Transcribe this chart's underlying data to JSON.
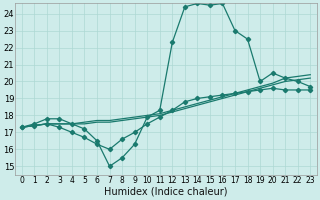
{
  "xlabel": "Humidex (Indice chaleur)",
  "bg_color": "#ceecea",
  "grid_color": "#aed8d4",
  "line_color": "#1a7a6e",
  "xlim": [
    -0.5,
    23.5
  ],
  "ylim": [
    14.5,
    24.6
  ],
  "xticks": [
    0,
    1,
    2,
    3,
    4,
    5,
    6,
    7,
    8,
    9,
    10,
    11,
    12,
    13,
    14,
    15,
    16,
    17,
    18,
    19,
    20,
    21,
    22,
    23
  ],
  "yticks": [
    15,
    16,
    17,
    18,
    19,
    20,
    21,
    22,
    23,
    24
  ],
  "lines": [
    {
      "x": [
        0,
        1,
        2,
        3,
        4,
        5,
        6,
        7,
        8,
        9,
        10,
        11,
        12,
        13,
        14,
        15,
        16,
        17,
        18,
        19,
        20,
        21,
        22,
        23
      ],
      "y": [
        17.3,
        17.5,
        17.8,
        17.8,
        17.5,
        17.2,
        16.5,
        15.0,
        15.5,
        16.3,
        17.9,
        18.3,
        22.3,
        24.4,
        24.6,
        24.5,
        24.6,
        23.0,
        22.5,
        20.0,
        20.5,
        20.2,
        20.0,
        19.7
      ],
      "marker": true
    },
    {
      "x": [
        0,
        1,
        2,
        3,
        4,
        5,
        6,
        7,
        8,
        9,
        10,
        11,
        12,
        13,
        14,
        15,
        16,
        17,
        18,
        19,
        20,
        21,
        22,
        23
      ],
      "y": [
        17.3,
        17.4,
        17.5,
        17.5,
        17.5,
        17.5,
        17.6,
        17.6,
        17.7,
        17.8,
        17.9,
        18.0,
        18.2,
        18.4,
        18.6,
        18.8,
        19.0,
        19.2,
        19.4,
        19.6,
        19.8,
        20.0,
        20.1,
        20.2
      ],
      "marker": false
    },
    {
      "x": [
        0,
        1,
        2,
        3,
        4,
        5,
        6,
        7,
        8,
        9,
        10,
        11,
        12,
        13,
        14,
        15,
        16,
        17,
        18,
        19,
        20,
        21,
        22,
        23
      ],
      "y": [
        17.3,
        17.4,
        17.5,
        17.5,
        17.5,
        17.6,
        17.7,
        17.7,
        17.8,
        17.9,
        18.0,
        18.1,
        18.3,
        18.5,
        18.7,
        18.9,
        19.1,
        19.3,
        19.5,
        19.7,
        19.9,
        20.2,
        20.3,
        20.4
      ],
      "marker": false
    },
    {
      "x": [
        0,
        1,
        2,
        3,
        4,
        5,
        6,
        7,
        8,
        9,
        10,
        11,
        12,
        13,
        14,
        15,
        16,
        17,
        18,
        19,
        20,
        21,
        22,
        23
      ],
      "y": [
        17.3,
        17.4,
        17.5,
        17.3,
        17.0,
        16.7,
        16.3,
        16.0,
        16.6,
        17.0,
        17.5,
        17.9,
        18.3,
        18.8,
        19.0,
        19.1,
        19.2,
        19.3,
        19.4,
        19.5,
        19.6,
        19.5,
        19.5,
        19.5
      ],
      "marker": true
    }
  ]
}
